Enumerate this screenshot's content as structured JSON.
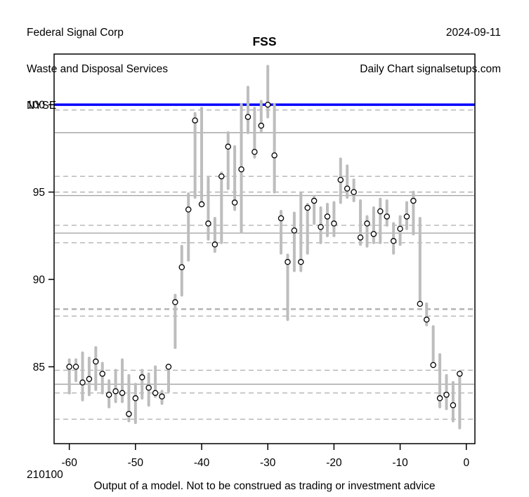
{
  "header": {
    "company": "Federal Signal Corp",
    "industry": "Waste and Disposal Services",
    "exchange": "NYSE",
    "date": "2024-09-11",
    "source": "Daily Chart signalsetups.com"
  },
  "title": "FSS",
  "footer": {
    "code": "210100",
    "disclaimer": "Output of a model. Not to be construed as trading or investment advice"
  },
  "chart_data": {
    "type": "bar",
    "subtype": "daily-high-low-range-bars-with-close-markers",
    "title": "FSS",
    "xlabel": "",
    "ylabel": "",
    "x_ticks": [
      -60,
      -50,
      -40,
      -30,
      -20,
      -10,
      0
    ],
    "y_ticks": [
      85,
      90,
      95,
      100
    ],
    "xlim": [
      -62.3,
      1.3
    ],
    "ylim": [
      80.6,
      102.9
    ],
    "grid": true,
    "legend": "none",
    "reference_line": {
      "value": 100.0,
      "color": "#0000FF",
      "width": 3.5
    },
    "levels_solid": [
      98.4,
      94.8,
      92.65,
      84.0
    ],
    "levels_dashed": [
      99.7,
      95.9,
      95.0,
      93.1,
      92.1,
      87.9,
      84.8,
      83.5,
      82.0
    ],
    "levels_dashed_bold": [
      88.3
    ],
    "bars": [
      {
        "day": -60,
        "high": 85.4,
        "low": 83.5,
        "close": 85.0
      },
      {
        "day": -59,
        "high": 85.4,
        "low": 84.2,
        "close": 85.0
      },
      {
        "day": -58,
        "high": 85.8,
        "low": 83.1,
        "close": 84.1
      },
      {
        "day": -57,
        "high": 85.5,
        "low": 83.4,
        "close": 84.3
      },
      {
        "day": -56,
        "high": 86.1,
        "low": 83.7,
        "close": 85.3
      },
      {
        "day": -55,
        "high": 85.2,
        "low": 83.5,
        "close": 84.6
      },
      {
        "day": -54,
        "high": 84.2,
        "low": 82.7,
        "close": 83.4
      },
      {
        "day": -53,
        "high": 84.8,
        "low": 83.0,
        "close": 83.6
      },
      {
        "day": -52,
        "high": 85.4,
        "low": 83.0,
        "close": 83.5
      },
      {
        "day": -51,
        "high": 84.5,
        "low": 81.9,
        "close": 82.3
      },
      {
        "day": -50,
        "high": 84.0,
        "low": 81.8,
        "close": 83.2
      },
      {
        "day": -49,
        "high": 84.8,
        "low": 83.2,
        "close": 84.4
      },
      {
        "day": -48,
        "high": 84.6,
        "low": 82.8,
        "close": 83.8
      },
      {
        "day": -47,
        "high": 85.0,
        "low": 83.3,
        "close": 83.5
      },
      {
        "day": -46,
        "high": 83.6,
        "low": 82.9,
        "close": 83.3
      },
      {
        "day": -45,
        "high": 85.1,
        "low": 83.6,
        "close": 85.0
      },
      {
        "day": -44,
        "high": 89.1,
        "low": 86.1,
        "close": 88.7
      },
      {
        "day": -43,
        "high": 91.9,
        "low": 89.1,
        "close": 90.7
      },
      {
        "day": -42,
        "high": 94.9,
        "low": 91.1,
        "close": 94.0
      },
      {
        "day": -41,
        "high": 99.5,
        "low": 94.7,
        "close": 99.1
      },
      {
        "day": -40,
        "high": 99.8,
        "low": 94.2,
        "close": 94.3
      },
      {
        "day": -39,
        "high": 95.8,
        "low": 92.3,
        "close": 93.2
      },
      {
        "day": -38,
        "high": 93.5,
        "low": 91.6,
        "close": 92.0
      },
      {
        "day": -37,
        "high": 96.1,
        "low": 92.1,
        "close": 95.9
      },
      {
        "day": -36,
        "high": 98.4,
        "low": 95.2,
        "close": 97.6
      },
      {
        "day": -35,
        "high": 97.6,
        "low": 94.0,
        "close": 94.4
      },
      {
        "day": -34,
        "high": 100.0,
        "low": 92.7,
        "close": 96.3
      },
      {
        "day": -33,
        "high": 101.0,
        "low": 98.4,
        "close": 99.3
      },
      {
        "day": -32,
        "high": 99.8,
        "low": 97.0,
        "close": 97.3
      },
      {
        "day": -31,
        "high": 100.2,
        "low": 98.5,
        "close": 98.8
      },
      {
        "day": -30,
        "high": 102.2,
        "low": 99.3,
        "close": 100.0
      },
      {
        "day": -29,
        "high": 100.0,
        "low": 95.0,
        "close": 97.1
      },
      {
        "day": -28,
        "high": 93.9,
        "low": 91.5,
        "close": 93.5
      },
      {
        "day": -27,
        "high": 91.4,
        "low": 87.7,
        "close": 91.0
      },
      {
        "day": -26,
        "high": 93.8,
        "low": 90.5,
        "close": 92.8
      },
      {
        "day": -25,
        "high": 94.9,
        "low": 90.5,
        "close": 91.0
      },
      {
        "day": -24,
        "high": 94.3,
        "low": 91.5,
        "close": 94.1
      },
      {
        "day": -23,
        "high": 94.7,
        "low": 93.2,
        "close": 94.5
      },
      {
        "day": -22,
        "high": 94.1,
        "low": 92.1,
        "close": 93.0
      },
      {
        "day": -21,
        "high": 94.3,
        "low": 92.5,
        "close": 93.6
      },
      {
        "day": -20,
        "high": 94.4,
        "low": 92.5,
        "close": 93.2
      },
      {
        "day": -19,
        "high": 96.9,
        "low": 94.4,
        "close": 95.7
      },
      {
        "day": -18,
        "high": 96.5,
        "low": 94.7,
        "close": 95.2
      },
      {
        "day": -17,
        "high": 95.7,
        "low": 94.5,
        "close": 95.0
      },
      {
        "day": -16,
        "high": 94.5,
        "low": 92.0,
        "close": 92.4
      },
      {
        "day": -15,
        "high": 93.6,
        "low": 91.9,
        "close": 93.2
      },
      {
        "day": -14,
        "high": 94.1,
        "low": 92.1,
        "close": 92.6
      },
      {
        "day": -13,
        "high": 94.6,
        "low": 92.1,
        "close": 93.9
      },
      {
        "day": -12,
        "high": 94.5,
        "low": 93.1,
        "close": 93.6
      },
      {
        "day": -11,
        "high": 93.2,
        "low": 91.5,
        "close": 92.2
      },
      {
        "day": -10,
        "high": 93.6,
        "low": 92.0,
        "close": 92.9
      },
      {
        "day": -9,
        "high": 94.4,
        "low": 92.9,
        "close": 93.6
      },
      {
        "day": -8,
        "high": 95.0,
        "low": 92.6,
        "close": 94.5
      },
      {
        "day": -7,
        "high": 93.5,
        "low": 88.6,
        "close": 88.6
      },
      {
        "day": -6,
        "high": 88.6,
        "low": 87.4,
        "close": 87.7
      },
      {
        "day": -5,
        "high": 87.3,
        "low": 85.0,
        "close": 85.1
      },
      {
        "day": -4,
        "high": 85.7,
        "low": 82.7,
        "close": 83.2
      },
      {
        "day": -3,
        "high": 84.5,
        "low": 82.6,
        "close": 83.4
      },
      {
        "day": -2,
        "high": 84.1,
        "low": 81.9,
        "close": 82.8
      },
      {
        "day": -1,
        "high": 84.7,
        "low": 81.5,
        "close": 84.6
      }
    ],
    "colors": {
      "bar": "#BDBDBD",
      "marker_stroke": "#000000",
      "marker_fill": "#FFFFFF",
      "grid_solid": "#A6A6A6",
      "grid_dashed": "#B3B3B3",
      "reference": "#0000FF",
      "frame": "#000000"
    }
  }
}
